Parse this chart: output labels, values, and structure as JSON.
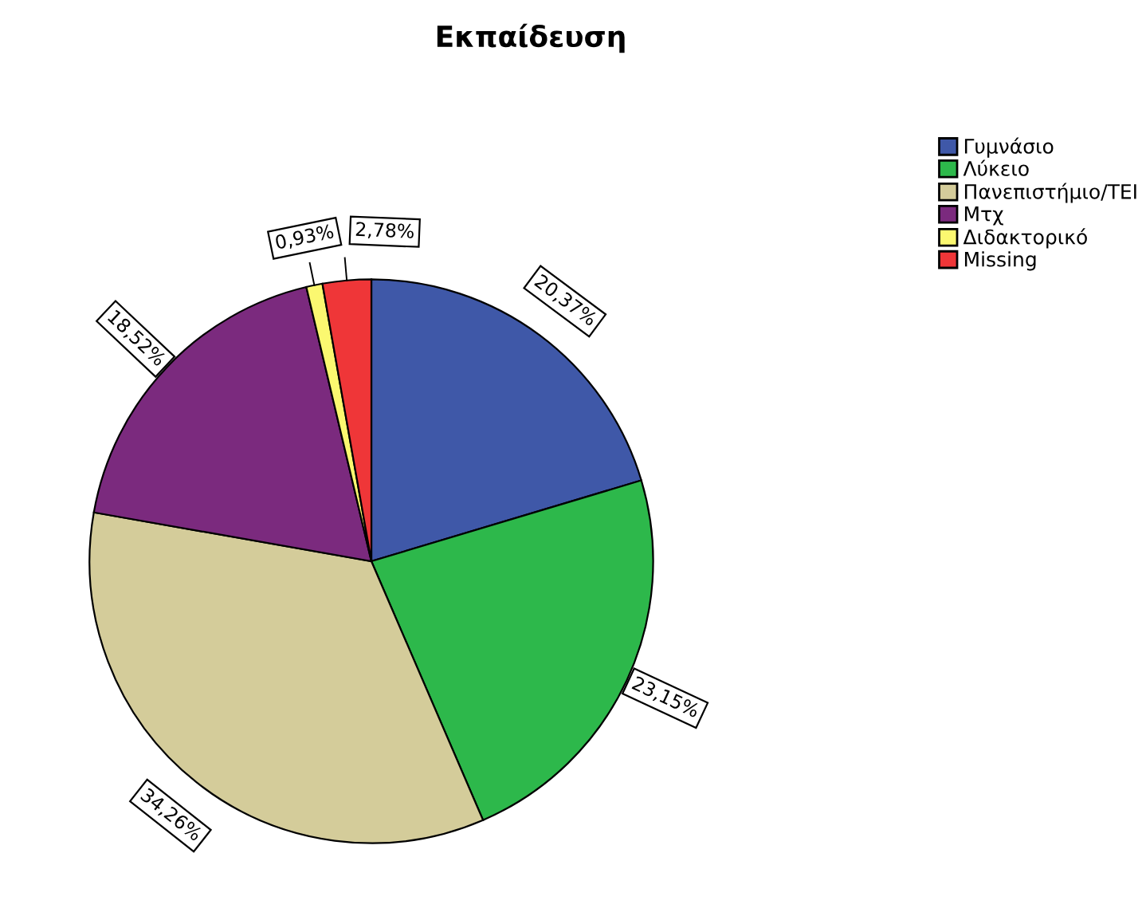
{
  "chart_data": {
    "type": "pie",
    "title": "Εκπαίδευση",
    "categories": [
      "Γυμνάσιο",
      "Λύκειο",
      "Πανεπιστήμιο/ΤΕΙ",
      "Μτχ",
      "Διδακτορικό",
      "Missing"
    ],
    "values": [
      20.37,
      23.15,
      34.26,
      18.52,
      0.93,
      2.78
    ],
    "value_labels": [
      "20,37%",
      "23,15%",
      "34,26%",
      "18,52%",
      "0,93%",
      "2,78%"
    ],
    "colors": [
      "#3f58a8",
      "#2db84b",
      "#d4cc9a",
      "#7b2a7e",
      "#fbf870",
      "#ef3638"
    ],
    "legend": "top right"
  }
}
